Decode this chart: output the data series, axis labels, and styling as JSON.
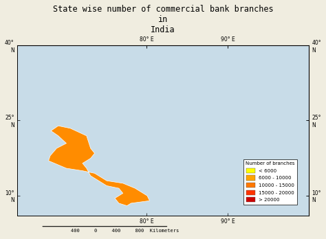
{
  "title": "State wise number of commercial bank branches\nin\nIndia",
  "title_fontsize": 8.5,
  "background_color": "#f0ede0",
  "ocean_color": "#c8dce8",
  "neighbor_color": "#e0e0d0",
  "legend_title": "Number of branches",
  "legend_labels": [
    "< 6000",
    "6000 - 10000",
    "10000 - 15000",
    "15000 - 20000",
    "> 20000"
  ],
  "legend_colors": [
    "#ffff00",
    "#ffa500",
    "#ff7800",
    "#ff3300",
    "#cc0000"
  ],
  "xlim": [
    64,
    100
  ],
  "ylim": [
    6,
    40
  ],
  "xticks": [
    80,
    90
  ],
  "xtick_labels": [
    "80° E",
    "90° E"
  ],
  "yticks": [
    10,
    25,
    40
  ],
  "ytick_labels": [
    "10°\nN",
    "25°\nN",
    "40°\nN"
  ],
  "scalebar_label": "400     0     400     800  Kilometers",
  "state_colors": {
    "Himachal Pradesh": "#ffff00",
    "Uttarakhand": "#ffff00",
    "Sikkim": "#ffff00",
    "Goa": "#ffff00",
    "Jammu and Kashmir": "#ffa500",
    "Punjab": "#ffa500",
    "Haryana": "#ffa500",
    "Delhi": "#ffa500",
    "Arunachal Pradesh": "#ffa500",
    "Nagaland": "#ffa500",
    "Manipur": "#ffa500",
    "Mizoram": "#ffa500",
    "Tripura": "#ffa500",
    "Meghalaya": "#ffa500",
    "Jharkhand": "#ffa500",
    "Rajasthan": "#ff8c00",
    "Bihar": "#ff8c00",
    "Odisha": "#ff8c00",
    "Chhattisgarh": "#ff8c00",
    "Madhya Pradesh": "#ff8c00",
    "Gujarat": "#ff8c00",
    "Maharashtra": "#ff8c00",
    "Andhra Pradesh": "#ff8c00",
    "Karnataka": "#ff8c00",
    "Kerala": "#ff8c00",
    "Tamil Nadu": "#ff8c00",
    "Telangana": "#ff8c00",
    "West Bengal": "#ff4500",
    "Uttar Pradesh": "#cc0000",
    "Assam": "#cc0000"
  }
}
